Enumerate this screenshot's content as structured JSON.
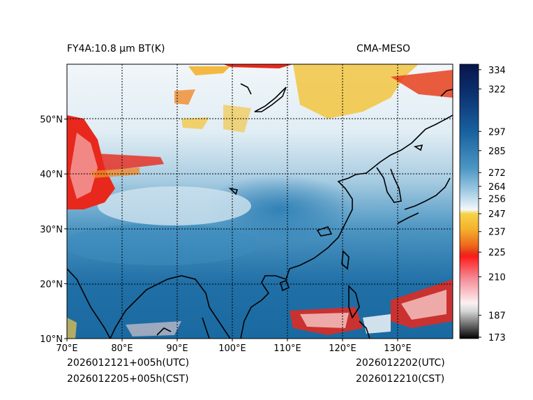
{
  "title_left": "FY4A:10.8 µm BT(K)",
  "title_right": "CMA-MESO",
  "footer": {
    "left_line1": "2026012121+005h(UTC)",
    "left_line2": "2026012205+005h(CST)",
    "right_line1": "2026012202(UTC)",
    "right_line2": "2026012210(CST)"
  },
  "map": {
    "lon_ticks": [
      "70°E",
      "80°E",
      "90°E",
      "100°E",
      "110°E",
      "120°E",
      "130°E"
    ],
    "lat_ticks": [
      "10°N",
      "20°N",
      "30°N",
      "40°N",
      "50°N"
    ],
    "lon_values": [
      70,
      80,
      90,
      100,
      110,
      120,
      130
    ],
    "lat_values": [
      10,
      20,
      30,
      40,
      50
    ],
    "lon_range": [
      70,
      140
    ],
    "lat_range": [
      10,
      60
    ]
  },
  "colorbar": {
    "tick_labels": [
      "334",
      "322",
      "297",
      "285",
      "272",
      "264",
      "256",
      "247",
      "237",
      "225",
      "210",
      "187",
      "173"
    ],
    "tick_values": [
      334,
      322,
      297,
      285,
      272,
      264,
      256,
      247,
      237,
      225,
      210,
      187,
      173
    ]
  },
  "colors": {
    "ocean_warm": "#1a6fa6",
    "land_cool": "#9cc8e0",
    "cold_white": "#eef4f8",
    "cloud_yellow": "#f2c84a",
    "cloud_orange": "#f08a2a",
    "cloud_red": "#e8281c",
    "coastline": "#000000"
  }
}
